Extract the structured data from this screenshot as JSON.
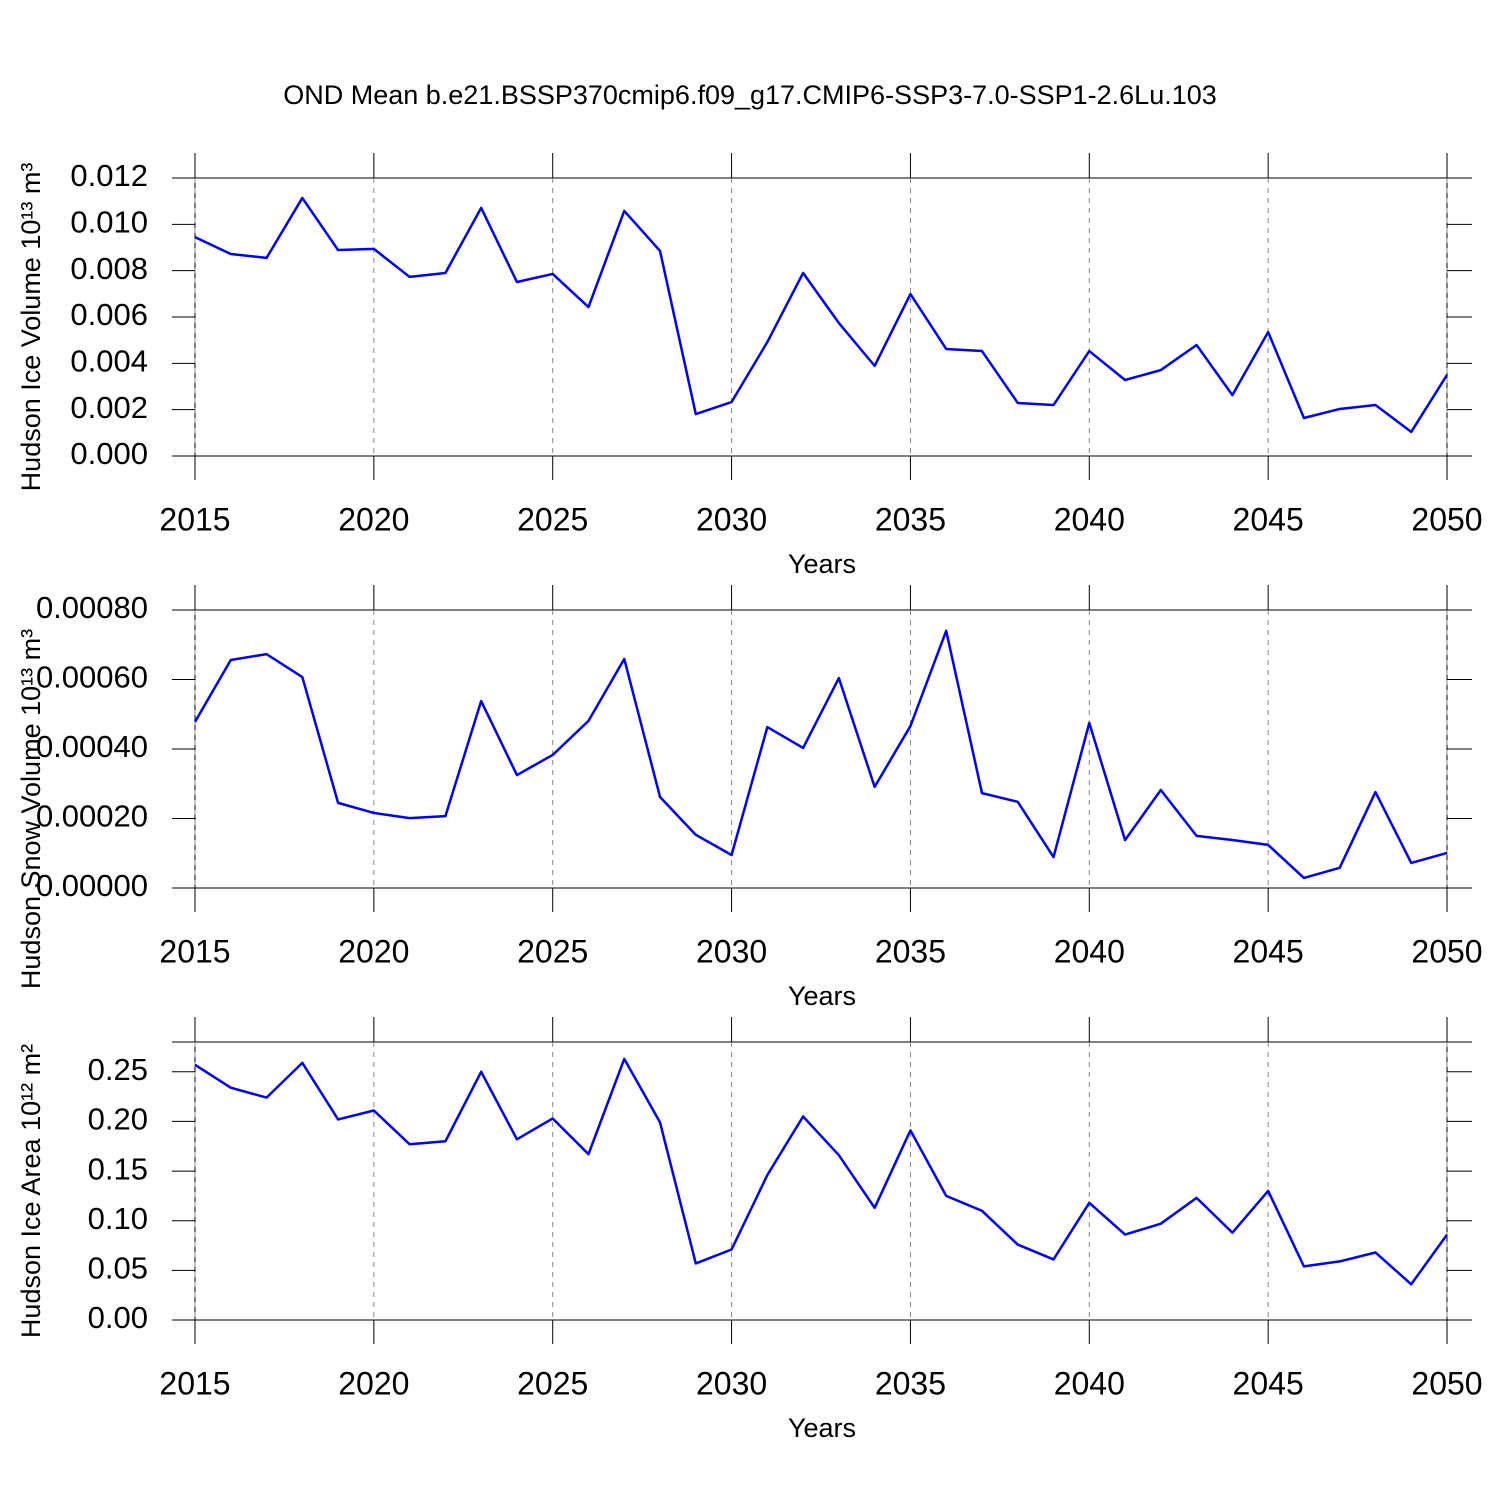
{
  "title": "OND Mean b.e21.BSSP370cmip6.f09_g17.CMIP6-SSP3-7.0-SSP1-2.6Lu.103",
  "chart_data": [
    {
      "type": "line",
      "xlabel": "Years",
      "ylabel": "Hudson Ice Volume 10¹³ m³",
      "grid": true,
      "color": "#0000ff",
      "x": [
        2015,
        2016,
        2017,
        2018,
        2019,
        2020,
        2021,
        2022,
        2023,
        2024,
        2025,
        2026,
        2027,
        2028,
        2029,
        2030,
        2031,
        2032,
        2033,
        2034,
        2035,
        2036,
        2037,
        2038,
        2039,
        2040,
        2041,
        2042,
        2043,
        2044,
        2045,
        2046,
        2047,
        2048,
        2049,
        2050
      ],
      "values": [
        0.00945,
        0.00872,
        0.00855,
        0.01114,
        0.00889,
        0.00894,
        0.00773,
        0.0079,
        0.01071,
        0.00751,
        0.00786,
        0.00643,
        0.01058,
        0.00885,
        0.00181,
        0.00233,
        0.00492,
        0.0079,
        0.00574,
        0.00389,
        0.00699,
        0.00462,
        0.00453,
        0.00229,
        0.0022,
        0.00453,
        0.00328,
        0.00371,
        0.00479,
        0.00263,
        0.00535,
        0.00164,
        0.00203,
        0.0022,
        0.00104,
        0.0035
      ],
      "xlim": [
        2015,
        2050
      ],
      "xticks": [
        2015,
        2020,
        2025,
        2030,
        2035,
        2040,
        2045,
        2050
      ],
      "ylim": [
        0,
        0.012
      ],
      "yticks": [
        {
          "value": 0,
          "label": "0.000"
        },
        0.002,
        0.004,
        0.006,
        0.008,
        {
          "value": 0.01,
          "label": "0.010"
        },
        0.012
      ]
    },
    {
      "type": "line",
      "xlabel": "Years",
      "ylabel": "Hudson Snow Volume 10¹³ m³",
      "grid": true,
      "color": "#0000ff",
      "x": [
        2015,
        2016,
        2017,
        2018,
        2019,
        2020,
        2021,
        2022,
        2023,
        2024,
        2025,
        2026,
        2027,
        2028,
        2029,
        2030,
        2031,
        2032,
        2033,
        2034,
        2035,
        2036,
        2037,
        2038,
        2039,
        2040,
        2041,
        2042,
        2043,
        2044,
        2045,
        2046,
        2047,
        2048,
        2049,
        2050
      ],
      "values": [
        0.000478,
        0.000656,
        0.000673,
        0.000607,
        0.000245,
        0.000216,
        0.000201,
        0.000207,
        0.000538,
        0.000325,
        0.000383,
        0.000481,
        0.000659,
        0.000262,
        0.000153,
        9.5e-05,
        0.000463,
        0.000403,
        0.000604,
        0.000291,
        0.000466,
        0.00074,
        0.000273,
        0.000248,
        8.9e-05,
        0.000475,
        0.000138,
        0.000282,
        0.00015,
        0.000138,
        0.000124,
        2.9e-05,
        5.8e-05,
        0.000276,
        7.2e-05,
        0.000101
      ],
      "xlim": [
        2015,
        2050
      ],
      "xticks": [
        2015,
        2020,
        2025,
        2030,
        2035,
        2040,
        2045,
        2050
      ],
      "ylim": [
        0,
        0.0008
      ],
      "yticks": [
        {
          "value": 0,
          "label": "0.00000"
        },
        {
          "value": 0.0002,
          "label": "0.00020"
        },
        {
          "value": 0.0004,
          "label": "0.00040"
        },
        {
          "value": 0.0006,
          "label": "0.00060"
        },
        {
          "value": 0.0008,
          "label": "0.00080"
        }
      ]
    },
    {
      "type": "line",
      "xlabel": "Years",
      "ylabel": "Hudson Ice Area 10¹² m²",
      "grid": true,
      "color": "#0000ff",
      "x": [
        2015,
        2016,
        2017,
        2018,
        2019,
        2020,
        2021,
        2022,
        2023,
        2024,
        2025,
        2026,
        2027,
        2028,
        2029,
        2030,
        2031,
        2032,
        2033,
        2034,
        2035,
        2036,
        2037,
        2038,
        2039,
        2040,
        2041,
        2042,
        2043,
        2044,
        2045,
        2046,
        2047,
        2048,
        2049,
        2050
      ],
      "values": [
        0.257,
        0.234,
        0.224,
        0.259,
        0.202,
        0.211,
        0.177,
        0.18,
        0.25,
        0.182,
        0.203,
        0.167,
        0.263,
        0.199,
        0.057,
        0.071,
        0.146,
        0.205,
        0.166,
        0.113,
        0.191,
        0.125,
        0.11,
        0.076,
        0.061,
        0.118,
        0.086,
        0.097,
        0.123,
        0.088,
        0.13,
        0.054,
        0.059,
        0.068,
        0.036,
        0.086
      ],
      "xlim": [
        2015,
        2050
      ],
      "xticks": [
        2015,
        2020,
        2025,
        2030,
        2035,
        2040,
        2045,
        2050
      ],
      "ylim": [
        0,
        0.28
      ],
      "yticks": [
        {
          "value": 0,
          "label": "0.00"
        },
        0.05,
        {
          "value": 0.1,
          "label": "0.10"
        },
        0.15,
        {
          "value": 0.2,
          "label": "0.20"
        },
        0.25
      ]
    }
  ]
}
